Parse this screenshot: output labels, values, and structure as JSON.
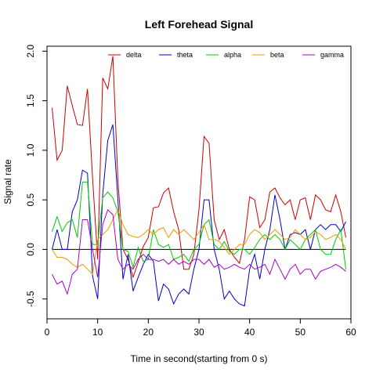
{
  "chart_data": {
    "type": "line",
    "title": "Left Forehead Signal",
    "xlabel": "Time in second(starting from 0 s)",
    "ylabel": "Signal rate",
    "xlim": [
      0,
      60
    ],
    "ylim": [
      -0.7,
      2.05
    ],
    "x_ticks": [
      0,
      10,
      20,
      30,
      40,
      50,
      60
    ],
    "y_ticks": [
      -0.5,
      0.0,
      0.5,
      1.0,
      1.5,
      2.0
    ],
    "x_tick_labels": [
      "0",
      "10",
      "20",
      "30",
      "40",
      "50",
      "60"
    ],
    "y_tick_labels": [
      "-0.5",
      "0.0",
      "0.5",
      "1.0",
      "1.5",
      "2.0"
    ],
    "reference_line_y": 0,
    "legend_position": "top",
    "x": [
      1,
      2,
      3,
      4,
      5,
      6,
      7,
      8,
      9,
      10,
      11,
      12,
      13,
      14,
      15,
      16,
      17,
      18,
      19,
      20,
      21,
      22,
      23,
      24,
      25,
      26,
      27,
      28,
      29,
      30,
      31,
      32,
      33,
      34,
      35,
      36,
      37,
      38,
      39,
      40,
      41,
      42,
      43,
      44,
      45,
      46,
      47,
      48,
      49,
      50,
      51,
      52,
      53,
      54,
      55,
      56,
      57,
      58,
      59
    ],
    "series": [
      {
        "name": "delta",
        "color": "#cc0000",
        "values": [
          1.43,
          0.9,
          1.0,
          1.65,
          1.45,
          1.26,
          1.25,
          1.62,
          0.72,
          -0.1,
          1.73,
          1.62,
          1.95,
          0.7,
          0.0,
          -0.1,
          -0.28,
          -0.13,
          0.03,
          0.12,
          0.42,
          0.43,
          0.57,
          0.62,
          0.38,
          0.2,
          -0.2,
          -0.2,
          -0.05,
          0.4,
          1.14,
          1.07,
          0.3,
          0.1,
          0.2,
          0.0,
          -0.08,
          -0.14,
          0.1,
          0.53,
          0.5,
          0.22,
          0.3,
          0.58,
          0.62,
          0.52,
          0.45,
          0.5,
          0.3,
          0.5,
          0.52,
          0.3,
          0.55,
          0.5,
          0.4,
          0.38,
          0.55,
          0.38,
          0.12
        ]
      },
      {
        "name": "theta",
        "color": "#0000cc",
        "values": [
          0.0,
          0.2,
          0.0,
          0.0,
          0.38,
          0.5,
          0.8,
          0.77,
          -0.27,
          -0.5,
          0.55,
          1.1,
          1.26,
          0.5,
          -0.3,
          -0.05,
          -0.42,
          -0.28,
          -0.15,
          -0.05,
          -0.12,
          -0.52,
          -0.35,
          -0.4,
          -0.55,
          -0.45,
          -0.4,
          -0.45,
          -0.2,
          0.0,
          0.5,
          0.5,
          0.0,
          -0.2,
          -0.5,
          -0.42,
          -0.5,
          -0.55,
          -0.57,
          -0.2,
          -0.05,
          -0.3,
          0.0,
          0.2,
          0.55,
          0.3,
          0.0,
          0.15,
          0.17,
          0.15,
          0.2,
          0.0,
          0.2,
          0.25,
          0.2,
          0.25,
          0.25,
          0.18,
          0.28
        ]
      },
      {
        "name": "alpha",
        "color": "#00cc00",
        "values": [
          0.18,
          0.33,
          0.18,
          0.27,
          0.3,
          0.12,
          0.68,
          0.68,
          0.05,
          0.05,
          0.52,
          0.58,
          0.52,
          0.38,
          0.0,
          -0.02,
          -0.18,
          0.02,
          -0.12,
          -0.1,
          0.2,
          0.05,
          0.02,
          0.05,
          -0.1,
          -0.08,
          -0.05,
          -0.12,
          0.0,
          0.05,
          0.25,
          0.3,
          0.05,
          0.0,
          0.08,
          -0.02,
          -0.05,
          0.0,
          0.0,
          -0.05,
          0.02,
          0.1,
          0.15,
          0.1,
          0.15,
          0.1,
          0.0,
          0.1,
          0.05,
          0.0,
          0.1,
          0.15,
          0.2,
          0.0,
          -0.05,
          -0.05,
          0.1,
          0.2,
          -0.2
        ]
      },
      {
        "name": "beta",
        "color": "#ee9900",
        "values": [
          0.0,
          -0.08,
          -0.08,
          -0.1,
          -0.15,
          -0.18,
          -0.15,
          -0.2,
          -0.25,
          0.1,
          0.15,
          0.2,
          0.3,
          0.4,
          0.25,
          0.15,
          0.13,
          0.12,
          0.15,
          0.2,
          0.15,
          0.2,
          0.22,
          0.12,
          0.2,
          0.15,
          0.2,
          0.15,
          0.1,
          0.17,
          0.25,
          0.1,
          0.1,
          0.08,
          0.02,
          -0.05,
          0.0,
          0.05,
          0.05,
          0.15,
          0.2,
          0.17,
          0.1,
          0.15,
          0.2,
          0.15,
          0.1,
          0.12,
          0.2,
          0.15,
          0.1,
          0.12,
          0.18,
          0.15,
          0.1,
          0.12,
          0.15,
          0.1,
          0.0
        ]
      },
      {
        "name": "gamma",
        "color": "#aa00cc",
        "values": [
          -0.25,
          -0.35,
          -0.32,
          -0.45,
          -0.25,
          -0.2,
          0.3,
          0.3,
          0.0,
          -0.28,
          0.25,
          0.4,
          0.35,
          -0.1,
          -0.2,
          -0.15,
          -0.2,
          -0.1,
          -0.05,
          -0.1,
          -0.1,
          -0.12,
          -0.1,
          -0.15,
          -0.1,
          -0.15,
          -0.12,
          -0.15,
          -0.1,
          -0.1,
          -0.15,
          -0.1,
          -0.18,
          -0.15,
          -0.2,
          -0.18,
          -0.15,
          -0.18,
          -0.2,
          -0.15,
          -0.2,
          -0.18,
          -0.15,
          -0.25,
          -0.1,
          -0.2,
          -0.3,
          -0.2,
          -0.15,
          -0.25,
          -0.2,
          -0.2,
          -0.3,
          -0.22,
          -0.2,
          -0.18,
          -0.15,
          -0.18,
          -0.22
        ]
      }
    ]
  }
}
